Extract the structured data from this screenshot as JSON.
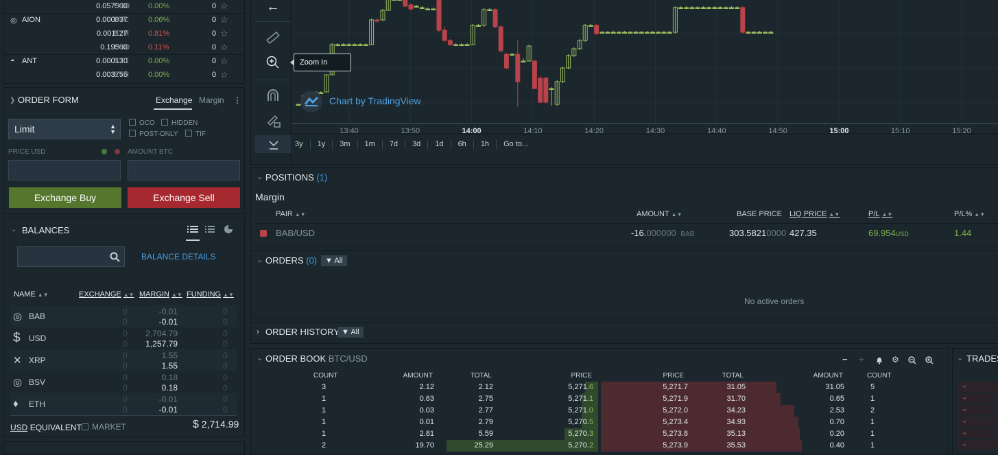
{
  "ticker": {
    "rows": [
      {
        "sym": "",
        "price": "0.057500",
        "cur": "USD",
        "pct": "0.00%",
        "pct_color": "green",
        "count": "0"
      },
      {
        "sym": "AION",
        "price": "0.000037",
        "cur": "BTC",
        "pct": "0.06%",
        "pct_color": "green",
        "count": "0"
      },
      {
        "sym": "",
        "price": "0.001127",
        "cur": "ETH",
        "pct": "0.81%",
        "pct_color": "red",
        "count": "0"
      },
      {
        "sym": "",
        "price": "0.19500",
        "cur": "USD",
        "pct": "0.11%",
        "pct_color": "red",
        "count": "0"
      },
      {
        "sym": "ANT",
        "price": "0.000130",
        "cur": "BTC",
        "pct": "0.00%",
        "pct_color": "green",
        "count": "0"
      },
      {
        "sym": "",
        "price": "0.003755",
        "cur": "ETH",
        "pct": "0.00%",
        "pct_color": "green",
        "count": "0"
      }
    ]
  },
  "order_form": {
    "title": "ORDER FORM",
    "tab_exchange": "Exchange",
    "tab_margin": "Margin",
    "type": "Limit",
    "oco": "OCO",
    "hidden": "HIDDEN",
    "post_only": "POST-ONLY",
    "tif": "TIF",
    "price_label": "PRICE USD",
    "amount_label": "AMOUNT BTC",
    "buy": "Exchange Buy",
    "sell": "Exchange Sell"
  },
  "balances": {
    "title": "BALANCES",
    "details": "BALANCE DETAILS",
    "col_name": "NAME",
    "col_exchange": "EXCHANGE",
    "col_margin": "MARGIN",
    "col_funding": "FUNDING",
    "rows": [
      {
        "name": "BAB",
        "ex1": "0",
        "ex2": "0",
        "m1": "-0.01",
        "m2": "-0.01",
        "f1": "0",
        "f2": "0"
      },
      {
        "name": "USD",
        "ex1": "0",
        "ex2": "0",
        "m1": "2,704.79",
        "m2": "1,257.79",
        "f1": "0",
        "f2": "0"
      },
      {
        "name": "XRP",
        "ex1": "0",
        "ex2": "0",
        "m1": "1.55",
        "m2": "1.55",
        "f1": "0",
        "f2": "0"
      },
      {
        "name": "BSV",
        "ex1": "0",
        "ex2": "0",
        "m1": "0.18",
        "m2": "0.18",
        "f1": "0",
        "f2": "0"
      },
      {
        "name": "ETH",
        "ex1": "0",
        "ex2": "0",
        "m1": "-0.01",
        "m2": "-0.01",
        "f1": "0",
        "f2": "0"
      }
    ],
    "equiv_cur": "USD",
    "equiv_label": "EQUIVALENT",
    "market": "MARKET",
    "total_sym": "$",
    "total": "2,714.99"
  },
  "chart": {
    "tooltip": "Zoom In",
    "watermark": "Chart by TradingView",
    "time_labels": [
      "13:40",
      "13:50",
      "14:00",
      "14:10",
      "14:20",
      "14:30",
      "14:40",
      "14:50",
      "15:00",
      "15:10",
      "15:20"
    ],
    "bold_times": [
      "14:00",
      "15:00"
    ],
    "ranges": [
      "3y",
      "1y",
      "3m",
      "1m",
      "7d",
      "3d",
      "1d",
      "6h",
      "1h",
      "Go to..."
    ],
    "colors": {
      "up": "#9bbd5c",
      "down": "#b8434a"
    }
  },
  "positions": {
    "title": "POSITIONS",
    "count": "(1)",
    "subtitle": "Margin",
    "col_pair": "PAIR",
    "col_amount": "AMOUNT",
    "col_base": "BASE PRICE",
    "col_liq": "LIQ PRICE",
    "col_pl": "P/L",
    "col_plpct": "P/L%",
    "row": {
      "pair": "BAB/USD",
      "amount_main": "-16.",
      "amount_dim": "000000",
      "amount_cur": "BAB",
      "base_main": "303.5821",
      "base_dim": "0000",
      "liq": "427.35",
      "pl": "69.954",
      "pl_cur": "USD",
      "plpct": "1.44"
    }
  },
  "orders": {
    "title": "ORDERS",
    "count": "(0)",
    "filter": "All",
    "empty": "No active orders"
  },
  "order_history": {
    "title": "ORDER HISTORY",
    "filter": "All"
  },
  "order_book": {
    "title": "ORDER BOOK",
    "pair": "BTC/USD",
    "bid_headers": [
      "COUNT",
      "AMOUNT",
      "TOTAL",
      "PRICE"
    ],
    "ask_headers": [
      "PRICE",
      "TOTAL",
      "AMOUNT",
      "COUNT"
    ],
    "bids": [
      {
        "count": "3",
        "amount": "2.12",
        "total": "2.12",
        "price_a": "5,271.",
        "price_b": "6"
      },
      {
        "count": "1",
        "amount": "0.63",
        "total": "2.75",
        "price_a": "5,271.",
        "price_b": "1"
      },
      {
        "count": "1",
        "amount": "0.03",
        "total": "2.77",
        "price_a": "5,271.",
        "price_b": "0"
      },
      {
        "count": "1",
        "amount": "0.01",
        "total": "2.79",
        "price_a": "5,270.",
        "price_b": "5"
      },
      {
        "count": "1",
        "amount": "2.81",
        "total": "5.59",
        "price_a": "5,270.",
        "price_b": "3"
      },
      {
        "count": "2",
        "amount": "19.70",
        "total": "25.29",
        "price_a": "5,270.",
        "price_b": "2"
      }
    ],
    "asks": [
      {
        "price": "5,271.7",
        "total": "31.05",
        "amount": "31.05",
        "count": "5"
      },
      {
        "price": "5,271.9",
        "total": "31.70",
        "amount": "0.65",
        "count": "1"
      },
      {
        "price": "5,272.0",
        "total": "34.23",
        "amount": "2.53",
        "count": "2"
      },
      {
        "price": "5,273.4",
        "total": "34.93",
        "amount": "0.70",
        "count": "1"
      },
      {
        "price": "5,273.8",
        "total": "35.13",
        "amount": "0.20",
        "count": "1"
      },
      {
        "price": "5,273.9",
        "total": "35.53",
        "amount": "0.40",
        "count": "1"
      }
    ]
  },
  "trades": {
    "title": "TRADES"
  }
}
